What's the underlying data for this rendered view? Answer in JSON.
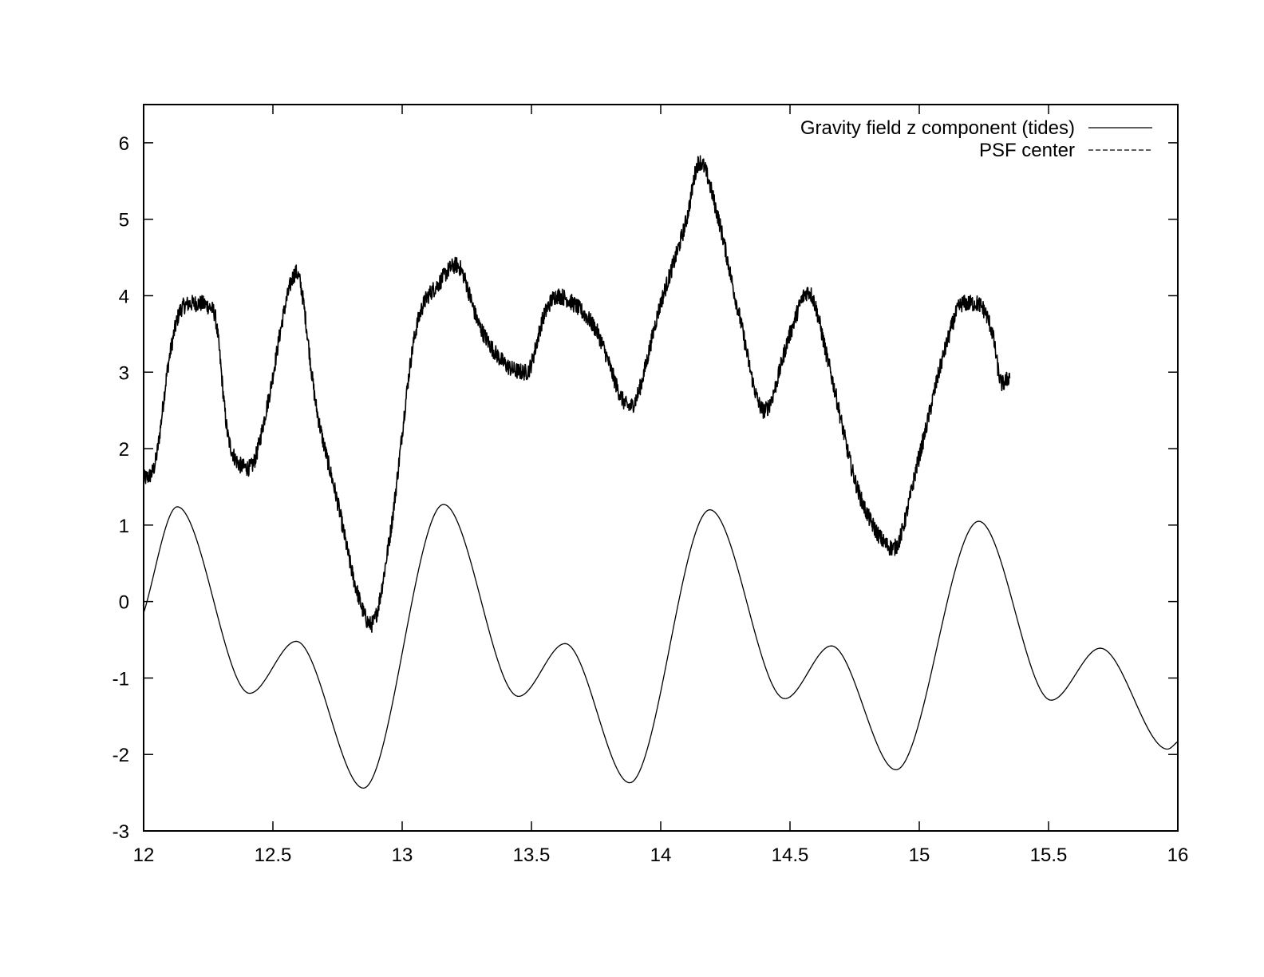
{
  "chart_data": {
    "type": "line",
    "title": "",
    "xlabel": "",
    "ylabel": "",
    "xlim": [
      12,
      16
    ],
    "ylim": [
      -3,
      6.5
    ],
    "grid": false,
    "legend_position": "top-right",
    "xticks": [
      12,
      12.5,
      13,
      13.5,
      14,
      14.5,
      15,
      15.5,
      16
    ],
    "xtick_labels": [
      "12",
      "12.5",
      "13",
      "13.5",
      "14",
      "14.5",
      "15",
      "15.5",
      "16"
    ],
    "yticks": [
      -3,
      -2,
      -1,
      0,
      1,
      2,
      3,
      4,
      5,
      6
    ],
    "ytick_labels": [
      "-3",
      "-2",
      "-1",
      "0",
      "1",
      "2",
      "3",
      "4",
      "5",
      "6"
    ],
    "series": [
      {
        "name": "Gravity field z component (tides)",
        "style": "solid",
        "color": "#000000",
        "x": [
          12.0,
          12.13,
          12.41,
          12.59,
          12.85,
          13.16,
          13.45,
          13.63,
          13.88,
          14.19,
          14.48,
          14.66,
          14.91,
          15.23,
          15.51,
          15.7,
          15.96,
          16.0
        ],
        "y": [
          -0.15,
          1.24,
          -1.2,
          -0.52,
          -2.44,
          1.27,
          -1.24,
          -0.55,
          -2.37,
          1.2,
          -1.27,
          -0.58,
          -2.2,
          1.05,
          -1.29,
          -0.61,
          -1.93,
          -1.83
        ]
      },
      {
        "name": "PSF center",
        "style": "dashed",
        "color": "#000000",
        "noisy": true,
        "x": [
          12.0,
          12.04,
          12.1,
          12.15,
          12.2,
          12.27,
          12.33,
          12.41,
          12.48,
          12.55,
          12.59,
          12.67,
          12.75,
          12.82,
          12.88,
          12.95,
          13.05,
          13.15,
          13.21,
          13.3,
          13.4,
          13.48,
          13.55,
          13.6,
          13.66,
          13.75,
          13.88,
          14.0,
          14.1,
          14.15,
          14.22,
          14.3,
          14.4,
          14.5,
          14.57,
          14.65,
          14.75,
          14.82,
          14.9,
          15.0,
          15.1,
          15.17,
          15.22,
          15.28,
          15.32,
          15.35
        ],
        "y": [
          1.6,
          1.75,
          3.2,
          3.85,
          3.9,
          3.8,
          2.1,
          1.75,
          2.6,
          3.9,
          4.3,
          2.5,
          1.3,
          0.2,
          -0.3,
          0.8,
          3.5,
          4.2,
          4.4,
          3.6,
          3.1,
          3.0,
          3.75,
          4.0,
          3.9,
          3.55,
          2.55,
          3.9,
          5.0,
          5.75,
          5.05,
          3.8,
          2.5,
          3.5,
          4.05,
          3.1,
          1.6,
          1.0,
          0.7,
          1.9,
          3.3,
          3.9,
          3.9,
          3.55,
          2.85,
          2.95
        ]
      }
    ]
  }
}
